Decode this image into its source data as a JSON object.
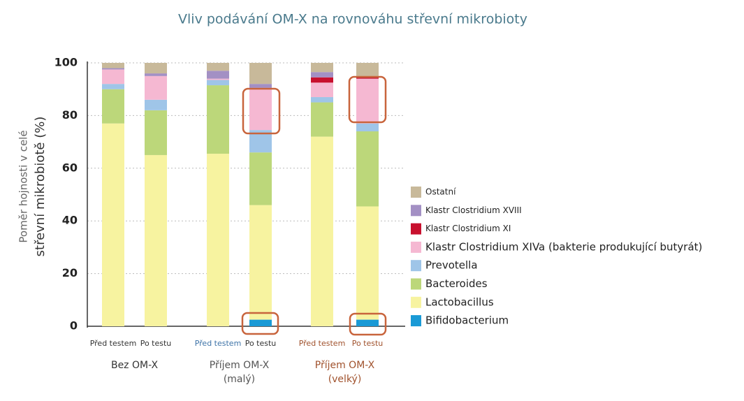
{
  "chart_data": {
    "type": "stacked-bar",
    "title": "Vliv podávání OM-X na rovnováhu střevní mikrobioty",
    "y_label": [
      "Poměr hojnosti v celé",
      "střevní mikrobiotě (%)"
    ],
    "categories": [
      "Před testem",
      "Po testu",
      "Před testem",
      "Po testu",
      "Před testem",
      "Po testu"
    ],
    "category_colors": [
      "#333333",
      "#333333",
      "#3f74a8",
      "#333333",
      "#a0522d",
      "#a0522d"
    ],
    "groups": [
      {
        "label": [
          "Bez OM-X"
        ],
        "color": "#333333"
      },
      {
        "label": [
          "Příjem OM-X",
          "(malý)"
        ],
        "color": "#555555"
      },
      {
        "label": [
          "Příjem OM-X",
          "(velký)"
        ],
        "color": "#a0522d"
      }
    ],
    "series": [
      {
        "name": "Bifidobacterium",
        "color": "#1a9ad6",
        "values": [
          0,
          0,
          0,
          2.5,
          0,
          2.5
        ]
      },
      {
        "name": "Lactobacillus",
        "color": "#f7f3a0",
        "values": [
          77,
          65,
          65.5,
          43.5,
          72,
          43
        ]
      },
      {
        "name": "Bacteroides",
        "color": "#bcd77a",
        "values": [
          13,
          17,
          26,
          20,
          13,
          28.5
        ]
      },
      {
        "name": "Prevotella",
        "color": "#9fc5e8",
        "values": [
          2,
          4,
          2,
          8.5,
          2,
          3
        ]
      },
      {
        "name": "Klastr Clostridium XIVa (bakterie produkující butyrát)",
        "color": "#f5b8d2",
        "values": [
          5.5,
          9,
          0.5,
          16,
          5.5,
          17
        ]
      },
      {
        "name": "Klastr Clostridium XI",
        "color": "#c8102e",
        "values": [
          0,
          0,
          0,
          0,
          2,
          1
        ]
      },
      {
        "name": "Klastr Clostridium XVIII",
        "color": "#a390c4",
        "values": [
          0.5,
          1,
          3,
          1.5,
          2,
          0
        ]
      },
      {
        "name": "Ostatní",
        "color": "#c8b99a",
        "values": [
          2,
          4,
          3,
          8,
          3.5,
          5
        ]
      }
    ],
    "ylim": [
      0,
      100
    ],
    "yticks": [
      0,
      20,
      40,
      60,
      80,
      100
    ],
    "grid": true
  }
}
